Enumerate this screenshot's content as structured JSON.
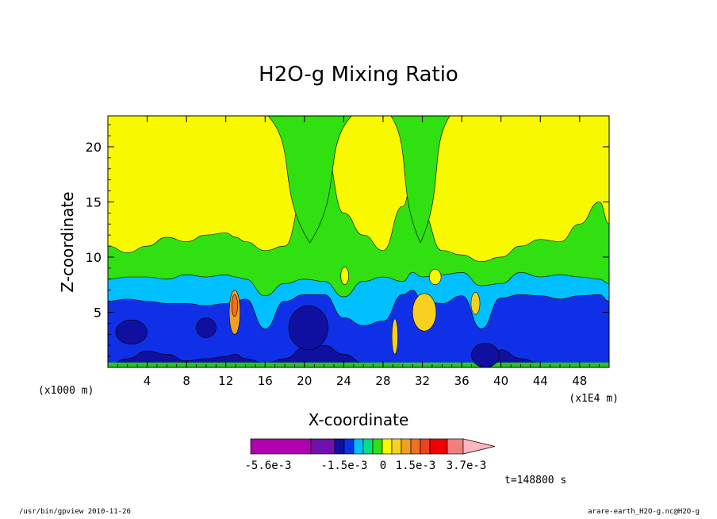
{
  "chart_data": {
    "type": "heatmap",
    "title": "H2O-g Mixing Ratio",
    "xlabel": "X-coordinate",
    "ylabel": "Z-coordinate",
    "x_unit": "(x1000 m)",
    "x_scale_note": "(x1E4 m)",
    "xlim": [
      0,
      51
    ],
    "ylim": [
      0,
      22.8
    ],
    "x_ticks": [
      "4",
      "8",
      "12",
      "16",
      "20",
      "24",
      "28",
      "32",
      "36",
      "40",
      "44",
      "48"
    ],
    "y_ticks": [
      "5",
      "10",
      "15",
      "20"
    ],
    "grid": false,
    "colorbar": {
      "levels": [
        "-5.6e-3",
        "-1.5e-3",
        "0",
        "1.5e-3",
        "3.7e-3"
      ],
      "colors": [
        "#b000b0",
        "#7010b0",
        "#1010a0",
        "#1030e8",
        "#00c0ff",
        "#00e080",
        "#30e010",
        "#f8f800",
        "#f8d020",
        "#f0a020",
        "#f07020",
        "#f04020",
        "#f00000",
        "#f08080",
        "#ffb6c1"
      ]
    },
    "time_label": "t=148800 s",
    "bands": {
      "x": [
        0,
        2,
        4,
        6,
        8,
        10,
        12,
        13,
        14,
        16,
        18,
        20,
        22,
        24,
        26,
        28,
        30,
        31,
        32,
        34,
        36,
        38,
        40,
        42,
        44,
        46,
        48,
        50,
        51
      ],
      "boundaries": [
        {
          "level": "navy",
          "y": [
            0.2,
            0.8,
            1.5,
            1.2,
            0.6,
            0.8,
            1.0,
            1.2,
            0.8,
            0.4,
            0.8,
            1.8,
            2.0,
            1.2,
            0.4,
            0.4,
            0.2,
            0.2,
            0.2,
            0.2,
            0.2,
            0.2,
            1.6,
            0.8,
            0.4,
            0.4,
            0.4,
            0.4,
            0.4
          ]
        },
        {
          "level": "blue",
          "y": [
            6.0,
            6.2,
            6.0,
            5.8,
            5.8,
            5.6,
            5.8,
            6.0,
            6.2,
            3.5,
            6.0,
            6.6,
            6.6,
            4.5,
            3.8,
            4.2,
            6.6,
            7.0,
            6.0,
            5.8,
            6.5,
            3.5,
            6.3,
            6.6,
            6.5,
            6.2,
            6.5,
            6.6,
            6.0
          ]
        },
        {
          "level": "cyan",
          "y": [
            8.0,
            8.2,
            8.2,
            8.0,
            8.4,
            8.2,
            8.4,
            8.2,
            8.0,
            6.5,
            7.6,
            8.0,
            7.8,
            6.4,
            7.8,
            8.2,
            7.8,
            8.6,
            8.2,
            8.4,
            8.6,
            7.4,
            7.6,
            8.6,
            8.2,
            8.4,
            8.2,
            8.0,
            7.6
          ]
        },
        {
          "level": "green",
          "y": [
            11.0,
            10.4,
            11.0,
            11.8,
            11.4,
            12.0,
            12.2,
            11.8,
            11.4,
            10.6,
            11.0,
            15.8,
            20.0,
            14.0,
            12.0,
            10.6,
            14.6,
            17.0,
            14.0,
            10.6,
            10.2,
            9.6,
            10.0,
            11.0,
            11.6,
            11.4,
            13.0,
            15.0,
            13.0
          ]
        },
        {
          "level": "yellow",
          "y": [
            22.8,
            22.8,
            22.8,
            22.8,
            22.8,
            22.8,
            22.8,
            22.8,
            22.8,
            22.8,
            22.8,
            22.8,
            22.8,
            22.8,
            22.8,
            22.8,
            22.8,
            22.8,
            22.8,
            22.8,
            22.8,
            22.8,
            22.8,
            22.8,
            22.8,
            22.8,
            22.8,
            22.8,
            22.8
          ]
        }
      ],
      "top_green_gaps": [
        [
          16.3,
          24.8
        ],
        [
          28.8,
          34.8
        ]
      ]
    },
    "features": [
      {
        "kind": "ellipse",
        "color": "#1010a0",
        "x": 2.4,
        "y": 3.2,
        "rx": 1.6,
        "ry": 1.1
      },
      {
        "kind": "ellipse",
        "color": "#1010a0",
        "x": 10.0,
        "y": 3.6,
        "rx": 1.0,
        "ry": 0.9
      },
      {
        "kind": "ellipse",
        "color": "#1010a0",
        "x": 20.4,
        "y": 3.6,
        "rx": 2.0,
        "ry": 2.0
      },
      {
        "kind": "ellipse",
        "color": "#1010a0",
        "x": 38.4,
        "y": 1.1,
        "rx": 1.4,
        "ry": 1.1
      },
      {
        "kind": "ellipse",
        "color": "#f8d020",
        "x": 32.2,
        "y": 5.0,
        "rx": 1.2,
        "ry": 1.7
      },
      {
        "kind": "ellipse",
        "color": "#f8d020",
        "x": 37.4,
        "y": 5.8,
        "rx": 0.45,
        "ry": 1.0
      },
      {
        "kind": "ellipse",
        "color": "#f8f800",
        "x": 24.1,
        "y": 8.3,
        "rx": 0.4,
        "ry": 0.8
      },
      {
        "kind": "ellipse",
        "color": "#f8f800",
        "x": 33.3,
        "y": 8.2,
        "rx": 0.6,
        "ry": 0.7
      },
      {
        "kind": "ellipse",
        "color": "#f0a020",
        "x": 12.9,
        "y": 5.0,
        "rx": 0.55,
        "ry": 2.0
      },
      {
        "kind": "ellipse",
        "color": "#f07020",
        "x": 12.9,
        "y": 5.6,
        "rx": 0.3,
        "ry": 1.0
      },
      {
        "kind": "ellipse",
        "color": "#f8d020",
        "x": 29.2,
        "y": 2.8,
        "rx": 0.3,
        "ry": 1.6
      }
    ]
  },
  "footer": {
    "left": "/usr/bin/gpview   2010-11-26",
    "right": "arare-earth_H2O-g.nc@H2O-g"
  }
}
